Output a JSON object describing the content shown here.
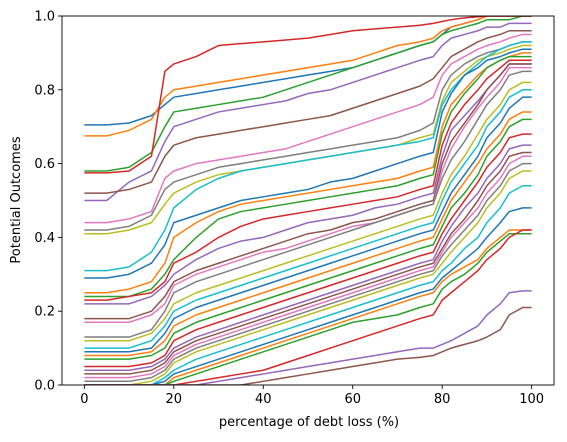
{
  "chart_data": {
    "type": "line",
    "title": "",
    "xlabel": "percentage of debt loss (%)",
    "ylabel": "Potential Outcomes",
    "xlim": [
      -5,
      105
    ],
    "ylim": [
      0,
      1
    ],
    "xticks": [
      0,
      20,
      40,
      60,
      80,
      100
    ],
    "yticks": [
      0.0,
      0.2,
      0.4,
      0.6,
      0.8,
      1.0
    ],
    "x": [
      0,
      5,
      10,
      15,
      18,
      20,
      25,
      30,
      35,
      40,
      45,
      50,
      55,
      60,
      65,
      70,
      75,
      78,
      80,
      82,
      85,
      88,
      90,
      93,
      95,
      98,
      100
    ],
    "grid": false,
    "legend": "none",
    "colors": [
      "#1f77b4",
      "#ff7f0e",
      "#2ca02c",
      "#d62728",
      "#9467bd",
      "#8c564b",
      "#e377c2",
      "#7f7f7f",
      "#bcbd22",
      "#17becf"
    ],
    "series": [
      {
        "values": [
          0.705,
          0.705,
          0.71,
          0.73,
          0.76,
          0.78,
          0.79,
          0.8,
          0.81,
          0.82,
          0.83,
          0.84,
          0.85,
          0.86,
          0.88,
          0.9,
          0.92,
          0.93,
          0.95,
          0.97,
          0.98,
          0.99,
          1.0,
          1.0,
          1.0,
          1.0,
          1.0
        ]
      },
      {
        "values": [
          0.675,
          0.675,
          0.69,
          0.72,
          0.78,
          0.8,
          0.81,
          0.82,
          0.83,
          0.84,
          0.85,
          0.86,
          0.87,
          0.88,
          0.9,
          0.92,
          0.93,
          0.94,
          0.96,
          0.97,
          0.98,
          0.99,
          1.0,
          1.0,
          1.0,
          1.0,
          1.0
        ]
      },
      {
        "values": [
          0.58,
          0.58,
          0.59,
          0.63,
          0.7,
          0.74,
          0.75,
          0.76,
          0.77,
          0.78,
          0.8,
          0.82,
          0.84,
          0.86,
          0.88,
          0.9,
          0.92,
          0.93,
          0.95,
          0.96,
          0.97,
          0.98,
          0.99,
          0.99,
          0.99,
          1.0,
          1.0
        ]
      },
      {
        "values": [
          0.575,
          0.575,
          0.58,
          0.62,
          0.85,
          0.87,
          0.89,
          0.92,
          0.925,
          0.93,
          0.935,
          0.94,
          0.95,
          0.96,
          0.965,
          0.97,
          0.975,
          0.98,
          0.985,
          0.99,
          0.995,
          0.998,
          1.0,
          1.0,
          1.0,
          1.0,
          1.0
        ]
      },
      {
        "values": [
          0.5,
          0.5,
          0.55,
          0.58,
          0.66,
          0.7,
          0.72,
          0.74,
          0.75,
          0.76,
          0.77,
          0.79,
          0.8,
          0.82,
          0.84,
          0.86,
          0.88,
          0.89,
          0.92,
          0.94,
          0.95,
          0.96,
          0.97,
          0.97,
          0.98,
          0.98,
          0.98
        ]
      },
      {
        "values": [
          0.52,
          0.52,
          0.53,
          0.55,
          0.62,
          0.65,
          0.67,
          0.68,
          0.69,
          0.7,
          0.71,
          0.72,
          0.73,
          0.75,
          0.77,
          0.79,
          0.81,
          0.83,
          0.86,
          0.89,
          0.91,
          0.93,
          0.94,
          0.95,
          0.96,
          0.96,
          0.96
        ]
      },
      {
        "values": [
          0.44,
          0.44,
          0.45,
          0.47,
          0.56,
          0.58,
          0.6,
          0.61,
          0.62,
          0.63,
          0.64,
          0.66,
          0.68,
          0.7,
          0.72,
          0.74,
          0.76,
          0.78,
          0.84,
          0.87,
          0.89,
          0.91,
          0.92,
          0.93,
          0.94,
          0.95,
          0.95
        ]
      },
      {
        "values": [
          0.42,
          0.42,
          0.43,
          0.46,
          0.53,
          0.55,
          0.57,
          0.59,
          0.6,
          0.61,
          0.62,
          0.63,
          0.64,
          0.65,
          0.66,
          0.67,
          0.69,
          0.71,
          0.8,
          0.84,
          0.87,
          0.89,
          0.9,
          0.91,
          0.92,
          0.93,
          0.93
        ]
      },
      {
        "values": [
          0.41,
          0.41,
          0.42,
          0.44,
          0.49,
          0.52,
          0.55,
          0.57,
          0.58,
          0.59,
          0.6,
          0.61,
          0.62,
          0.63,
          0.64,
          0.65,
          0.67,
          0.68,
          0.77,
          0.82,
          0.85,
          0.88,
          0.89,
          0.9,
          0.91,
          0.92,
          0.92
        ]
      },
      {
        "values": [
          0.31,
          0.31,
          0.32,
          0.36,
          0.42,
          0.48,
          0.53,
          0.56,
          0.58,
          0.59,
          0.6,
          0.61,
          0.62,
          0.63,
          0.64,
          0.65,
          0.66,
          0.67,
          0.76,
          0.8,
          0.84,
          0.87,
          0.89,
          0.91,
          0.92,
          0.93,
          0.93
        ]
      },
      {
        "values": [
          0.29,
          0.29,
          0.3,
          0.33,
          0.38,
          0.44,
          0.46,
          0.48,
          0.5,
          0.51,
          0.52,
          0.53,
          0.55,
          0.56,
          0.58,
          0.6,
          0.62,
          0.63,
          0.74,
          0.79,
          0.84,
          0.86,
          0.88,
          0.89,
          0.9,
          0.91,
          0.91
        ]
      },
      {
        "values": [
          0.25,
          0.25,
          0.26,
          0.28,
          0.33,
          0.4,
          0.44,
          0.47,
          0.49,
          0.5,
          0.51,
          0.52,
          0.53,
          0.54,
          0.55,
          0.56,
          0.58,
          0.59,
          0.7,
          0.76,
          0.8,
          0.84,
          0.86,
          0.88,
          0.89,
          0.9,
          0.9
        ]
      },
      {
        "values": [
          0.24,
          0.24,
          0.24,
          0.26,
          0.3,
          0.34,
          0.4,
          0.45,
          0.47,
          0.48,
          0.49,
          0.5,
          0.51,
          0.52,
          0.53,
          0.54,
          0.56,
          0.57,
          0.68,
          0.74,
          0.79,
          0.83,
          0.86,
          0.88,
          0.89,
          0.89,
          0.89
        ]
      },
      {
        "values": [
          0.23,
          0.23,
          0.24,
          0.25,
          0.28,
          0.33,
          0.36,
          0.4,
          0.43,
          0.45,
          0.46,
          0.47,
          0.48,
          0.49,
          0.5,
          0.51,
          0.53,
          0.54,
          0.65,
          0.71,
          0.76,
          0.8,
          0.83,
          0.86,
          0.88,
          0.88,
          0.88
        ]
      },
      {
        "values": [
          0.22,
          0.22,
          0.22,
          0.24,
          0.27,
          0.3,
          0.34,
          0.37,
          0.39,
          0.4,
          0.42,
          0.44,
          0.45,
          0.46,
          0.48,
          0.49,
          0.51,
          0.52,
          0.62,
          0.69,
          0.73,
          0.77,
          0.8,
          0.84,
          0.87,
          0.87,
          0.87
        ]
      },
      {
        "values": [
          0.18,
          0.18,
          0.18,
          0.2,
          0.24,
          0.28,
          0.31,
          0.33,
          0.35,
          0.37,
          0.39,
          0.41,
          0.42,
          0.44,
          0.45,
          0.47,
          0.49,
          0.5,
          0.6,
          0.66,
          0.71,
          0.76,
          0.8,
          0.84,
          0.87,
          0.87,
          0.87
        ]
      },
      {
        "values": [
          0.17,
          0.17,
          0.17,
          0.19,
          0.22,
          0.27,
          0.3,
          0.32,
          0.34,
          0.36,
          0.37,
          0.39,
          0.41,
          0.43,
          0.44,
          0.46,
          0.48,
          0.49,
          0.58,
          0.64,
          0.7,
          0.75,
          0.78,
          0.82,
          0.86,
          0.86,
          0.86
        ]
      },
      {
        "values": [
          0.13,
          0.13,
          0.13,
          0.15,
          0.2,
          0.25,
          0.28,
          0.3,
          0.32,
          0.34,
          0.36,
          0.38,
          0.4,
          0.42,
          0.44,
          0.46,
          0.48,
          0.49,
          0.56,
          0.61,
          0.66,
          0.72,
          0.76,
          0.8,
          0.84,
          0.85,
          0.85
        ]
      },
      {
        "values": [
          0.12,
          0.12,
          0.12,
          0.14,
          0.18,
          0.22,
          0.25,
          0.27,
          0.29,
          0.31,
          0.33,
          0.35,
          0.37,
          0.39,
          0.41,
          0.43,
          0.45,
          0.46,
          0.52,
          0.57,
          0.62,
          0.68,
          0.72,
          0.76,
          0.8,
          0.82,
          0.82
        ]
      },
      {
        "values": [
          0.1,
          0.1,
          0.1,
          0.12,
          0.16,
          0.2,
          0.23,
          0.25,
          0.27,
          0.29,
          0.31,
          0.33,
          0.35,
          0.37,
          0.39,
          0.41,
          0.43,
          0.44,
          0.5,
          0.55,
          0.6,
          0.65,
          0.7,
          0.74,
          0.78,
          0.8,
          0.8
        ]
      },
      {
        "values": [
          0.09,
          0.09,
          0.09,
          0.1,
          0.14,
          0.18,
          0.21,
          0.23,
          0.25,
          0.27,
          0.29,
          0.31,
          0.33,
          0.35,
          0.37,
          0.39,
          0.41,
          0.42,
          0.47,
          0.52,
          0.57,
          0.62,
          0.67,
          0.71,
          0.75,
          0.78,
          0.78
        ]
      },
      {
        "values": [
          0.08,
          0.08,
          0.08,
          0.09,
          0.12,
          0.16,
          0.19,
          0.21,
          0.23,
          0.25,
          0.27,
          0.29,
          0.31,
          0.33,
          0.35,
          0.37,
          0.39,
          0.4,
          0.45,
          0.5,
          0.55,
          0.6,
          0.64,
          0.68,
          0.72,
          0.74,
          0.74
        ]
      },
      {
        "values": [
          0.07,
          0.07,
          0.07,
          0.08,
          0.1,
          0.14,
          0.17,
          0.19,
          0.21,
          0.23,
          0.25,
          0.27,
          0.29,
          0.31,
          0.33,
          0.35,
          0.37,
          0.38,
          0.43,
          0.48,
          0.52,
          0.57,
          0.62,
          0.66,
          0.7,
          0.72,
          0.72
        ]
      },
      {
        "values": [
          0.05,
          0.05,
          0.05,
          0.06,
          0.08,
          0.12,
          0.15,
          0.17,
          0.19,
          0.21,
          0.23,
          0.25,
          0.27,
          0.29,
          0.31,
          0.33,
          0.35,
          0.36,
          0.41,
          0.45,
          0.5,
          0.55,
          0.59,
          0.63,
          0.67,
          0.68,
          0.68
        ]
      },
      {
        "values": [
          0.04,
          0.04,
          0.04,
          0.05,
          0.07,
          0.1,
          0.13,
          0.15,
          0.17,
          0.19,
          0.21,
          0.23,
          0.25,
          0.27,
          0.29,
          0.31,
          0.33,
          0.34,
          0.39,
          0.43,
          0.48,
          0.52,
          0.56,
          0.6,
          0.64,
          0.65,
          0.65
        ]
      },
      {
        "values": [
          0.03,
          0.03,
          0.03,
          0.04,
          0.06,
          0.09,
          0.12,
          0.14,
          0.16,
          0.18,
          0.2,
          0.22,
          0.24,
          0.26,
          0.28,
          0.3,
          0.32,
          0.33,
          0.37,
          0.41,
          0.45,
          0.5,
          0.54,
          0.58,
          0.62,
          0.63,
          0.63
        ]
      },
      {
        "values": [
          0.02,
          0.02,
          0.02,
          0.03,
          0.05,
          0.08,
          0.11,
          0.13,
          0.15,
          0.17,
          0.19,
          0.21,
          0.23,
          0.25,
          0.27,
          0.29,
          0.31,
          0.32,
          0.36,
          0.4,
          0.44,
          0.48,
          0.52,
          0.56,
          0.6,
          0.62,
          0.62
        ]
      },
      {
        "values": [
          0.01,
          0.01,
          0.01,
          0.02,
          0.04,
          0.07,
          0.1,
          0.12,
          0.14,
          0.16,
          0.18,
          0.2,
          0.22,
          0.24,
          0.26,
          0.28,
          0.3,
          0.31,
          0.35,
          0.38,
          0.42,
          0.46,
          0.5,
          0.54,
          0.58,
          0.6,
          0.6
        ]
      },
      {
        "values": [
          0.0,
          0.0,
          0.0,
          0.01,
          0.03,
          0.06,
          0.09,
          0.11,
          0.13,
          0.15,
          0.17,
          0.19,
          0.21,
          0.23,
          0.25,
          0.27,
          0.29,
          0.3,
          0.33,
          0.36,
          0.4,
          0.44,
          0.48,
          0.52,
          0.56,
          0.58,
          0.58
        ]
      },
      {
        "values": [
          0.0,
          0.0,
          0.0,
          0.0,
          0.02,
          0.04,
          0.07,
          0.09,
          0.11,
          0.13,
          0.15,
          0.17,
          0.19,
          0.21,
          0.23,
          0.25,
          0.27,
          0.28,
          0.31,
          0.33,
          0.37,
          0.4,
          0.44,
          0.48,
          0.52,
          0.54,
          0.54
        ]
      },
      {
        "values": [
          0.0,
          0.0,
          0.0,
          0.0,
          0.01,
          0.03,
          0.05,
          0.07,
          0.09,
          0.11,
          0.13,
          0.15,
          0.17,
          0.19,
          0.21,
          0.23,
          0.25,
          0.26,
          0.29,
          0.31,
          0.34,
          0.37,
          0.4,
          0.44,
          0.47,
          0.48,
          0.48
        ]
      },
      {
        "values": [
          0.0,
          0.0,
          0.0,
          0.0,
          0.0,
          0.02,
          0.04,
          0.06,
          0.08,
          0.1,
          0.12,
          0.14,
          0.16,
          0.18,
          0.2,
          0.22,
          0.24,
          0.25,
          0.28,
          0.3,
          0.32,
          0.34,
          0.37,
          0.4,
          0.42,
          0.42,
          0.42
        ]
      },
      {
        "values": [
          0.0,
          0.0,
          0.0,
          0.0,
          0.0,
          0.01,
          0.03,
          0.05,
          0.07,
          0.09,
          0.11,
          0.13,
          0.15,
          0.17,
          0.18,
          0.19,
          0.21,
          0.22,
          0.26,
          0.28,
          0.3,
          0.33,
          0.36,
          0.39,
          0.41,
          0.41,
          0.41
        ]
      },
      {
        "values": [
          0.0,
          0.0,
          0.0,
          0.0,
          0.0,
          0.0,
          0.01,
          0.02,
          0.03,
          0.04,
          0.06,
          0.08,
          0.1,
          0.12,
          0.14,
          0.16,
          0.18,
          0.19,
          0.23,
          0.25,
          0.28,
          0.31,
          0.34,
          0.37,
          0.4,
          0.42,
          0.42
        ]
      },
      {
        "values": [
          0.0,
          0.0,
          0.0,
          0.0,
          0.0,
          0.0,
          0.0,
          0.01,
          0.02,
          0.03,
          0.04,
          0.05,
          0.06,
          0.07,
          0.08,
          0.09,
          0.1,
          0.1,
          0.11,
          0.12,
          0.14,
          0.16,
          0.19,
          0.22,
          0.25,
          0.255,
          0.255
        ]
      },
      {
        "values": [
          0.0,
          0.0,
          0.0,
          0.0,
          0.0,
          0.0,
          0.0,
          0.0,
          0.0,
          0.01,
          0.02,
          0.03,
          0.04,
          0.05,
          0.06,
          0.07,
          0.075,
          0.08,
          0.09,
          0.1,
          0.11,
          0.12,
          0.13,
          0.15,
          0.19,
          0.21,
          0.21
        ]
      }
    ]
  }
}
